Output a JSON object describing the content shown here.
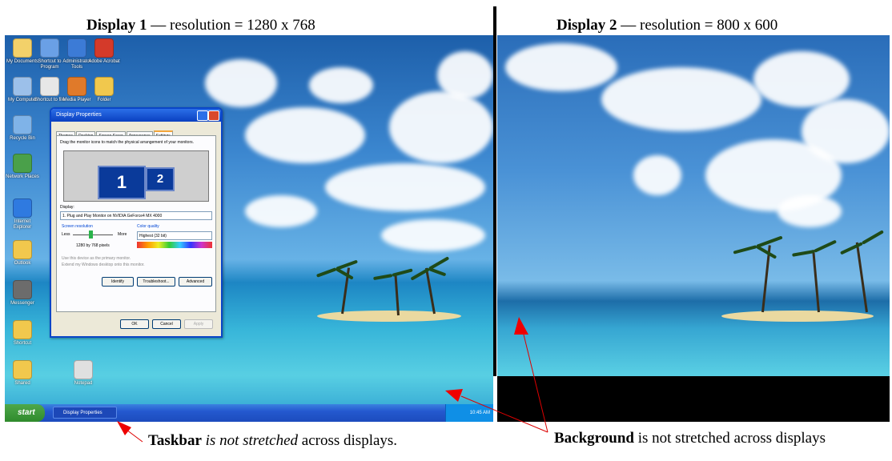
{
  "captions": {
    "display1_bold": "Display 1",
    "display1_rest": " — resolution = 1280 x 768",
    "display2_bold": "Display 2",
    "display2_rest": " — resolution = 800 x 600",
    "taskbar_bold": "Taskbar",
    "taskbar_italic": " is not stretched",
    "taskbar_rest": " across displays.",
    "background_bold": "Background",
    "background_rest": " is not stretched across displays"
  },
  "dialog": {
    "title": "Display Properties",
    "tabs": [
      "Themes",
      "Desktop",
      "Screen Saver",
      "Appearance",
      "Settings"
    ],
    "instruction": "Drag the monitor icons to match the physical arrangement of your monitors.",
    "monitor_1": "1",
    "monitor_2": "2",
    "display_label": "Display:",
    "display_value": "1. Plug and Play Monitor on NVIDIA GeForce4 MX 4000",
    "resolution_label": "Screen resolution",
    "less": "Less",
    "more": "More",
    "resolution_value": "1280 by 768 pixels",
    "color_label": "Color quality",
    "color_value": "Highest (32 bit)",
    "checkbox1": "Use this device as the primary monitor.",
    "checkbox2": "Extend my Windows desktop onto this monitor.",
    "identify": "Identify",
    "troubleshoot": "Troubleshoot...",
    "advanced": "Advanced",
    "ok": "OK",
    "cancel": "Cancel",
    "apply": "Apply"
  },
  "taskbar": {
    "start": "start",
    "task": "Display Properties",
    "clock": "10:45 AM"
  },
  "desktop_icons": [
    {
      "label": "My Documents",
      "color": "#f3d16a"
    },
    {
      "label": "Shortcut to Program",
      "color": "#6aa0e6"
    },
    {
      "label": "Administrator Tools",
      "color": "#3c7bd6"
    },
    {
      "label": "Adobe Acrobat",
      "color": "#d43a2a"
    },
    {
      "label": "My Computer",
      "color": "#9cc0ea"
    },
    {
      "label": "Shortcut to file",
      "color": "#e7e7e7"
    },
    {
      "label": "Media Player",
      "color": "#e07a2a"
    },
    {
      "label": "Folder",
      "color": "#f1c84d"
    },
    {
      "label": "Recycle Bin",
      "color": "#7fb3e8"
    },
    {
      "label": "Network Places",
      "color": "#4aa04a"
    },
    {
      "label": "Internet Explorer",
      "color": "#2f7ae0"
    },
    {
      "label": "Outlook",
      "color": "#f1c84d"
    },
    {
      "label": "Messenger",
      "color": "#6c6c6c"
    },
    {
      "label": "Shortcut",
      "color": "#f1c84d"
    },
    {
      "label": "Shared",
      "color": "#f1c84d"
    },
    {
      "label": "Notepad",
      "color": "#e0e0e0"
    }
  ]
}
